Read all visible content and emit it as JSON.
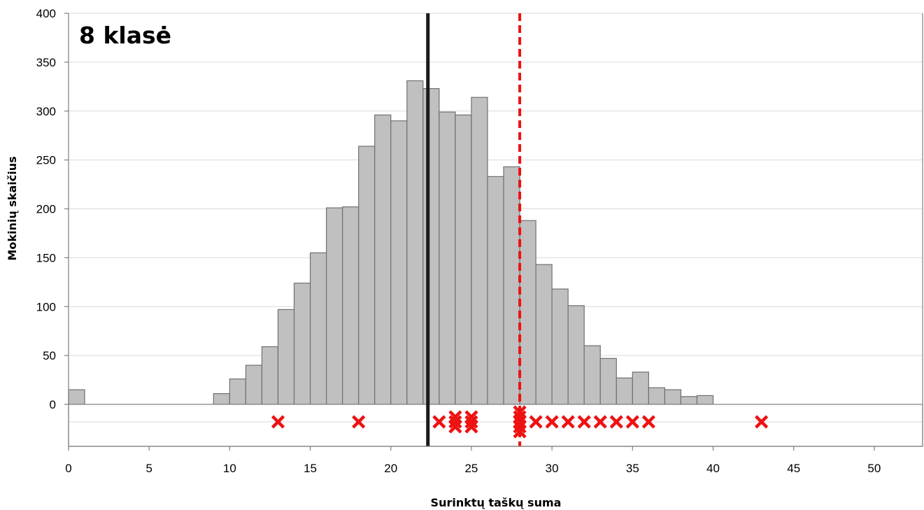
{
  "chart_data": {
    "type": "bar",
    "title": "8 klasė",
    "xlabel": "Surinktų taškų suma",
    "ylabel": "Mokinių skaičius",
    "xlim": [
      0,
      53
    ],
    "ylim": [
      0,
      400
    ],
    "xticks": [
      0,
      5,
      10,
      15,
      20,
      25,
      30,
      35,
      40,
      45,
      50
    ],
    "yticks": [
      0,
      50,
      100,
      150,
      200,
      250,
      300,
      350,
      400
    ],
    "grid": true,
    "bins": [
      {
        "x": 0,
        "value": 15
      },
      {
        "x": 9,
        "value": 11
      },
      {
        "x": 10,
        "value": 26
      },
      {
        "x": 11,
        "value": 40
      },
      {
        "x": 12,
        "value": 59
      },
      {
        "x": 13,
        "value": 97
      },
      {
        "x": 14,
        "value": 124
      },
      {
        "x": 15,
        "value": 155
      },
      {
        "x": 16,
        "value": 201
      },
      {
        "x": 17,
        "value": 202
      },
      {
        "x": 18,
        "value": 264
      },
      {
        "x": 19,
        "value": 296
      },
      {
        "x": 20,
        "value": 290
      },
      {
        "x": 21,
        "value": 331
      },
      {
        "x": 22,
        "value": 323
      },
      {
        "x": 23,
        "value": 299
      },
      {
        "x": 24,
        "value": 296
      },
      {
        "x": 25,
        "value": 314
      },
      {
        "x": 26,
        "value": 233
      },
      {
        "x": 27,
        "value": 243
      },
      {
        "x": 28,
        "value": 188
      },
      {
        "x": 29,
        "value": 143
      },
      {
        "x": 30,
        "value": 118
      },
      {
        "x": 31,
        "value": 101
      },
      {
        "x": 32,
        "value": 60
      },
      {
        "x": 33,
        "value": 47
      },
      {
        "x": 34,
        "value": 27
      },
      {
        "x": 35,
        "value": 33
      },
      {
        "x": 36,
        "value": 17
      },
      {
        "x": 37,
        "value": 15
      },
      {
        "x": 38,
        "value": 8
      },
      {
        "x": 39,
        "value": 9
      }
    ],
    "mean_line": {
      "x": 22.3,
      "color": "#1a1a1a",
      "style": "solid"
    },
    "marker_line": {
      "x": 28.0,
      "color": "#ee1111",
      "style": "dashed"
    },
    "markers": [
      {
        "x": 13,
        "row": 0
      },
      {
        "x": 18,
        "row": 0
      },
      {
        "x": 23,
        "row": 0
      },
      {
        "x": 24,
        "row": 0
      },
      {
        "x": 24,
        "row": 1
      },
      {
        "x": 24,
        "row": -1
      },
      {
        "x": 25,
        "row": 0
      },
      {
        "x": 25,
        "row": 1
      },
      {
        "x": 25,
        "row": -1
      },
      {
        "x": 28,
        "row": 0
      },
      {
        "x": 28,
        "row": 1
      },
      {
        "x": 28,
        "row": 2
      },
      {
        "x": 28,
        "row": -1
      },
      {
        "x": 28,
        "row": -2
      },
      {
        "x": 29,
        "row": 0
      },
      {
        "x": 30,
        "row": 0
      },
      {
        "x": 31,
        "row": 0
      },
      {
        "x": 32,
        "row": 0
      },
      {
        "x": 33,
        "row": 0
      },
      {
        "x": 34,
        "row": 0
      },
      {
        "x": 35,
        "row": 0
      },
      {
        "x": 36,
        "row": 0
      },
      {
        "x": 43,
        "row": 0
      }
    ],
    "colors": {
      "bar_fill": "#c0c0c0",
      "bar_stroke": "#707070",
      "grid": "#d9d9d9",
      "marker": "#ee1111",
      "mean_line": "#1a1a1a"
    }
  }
}
